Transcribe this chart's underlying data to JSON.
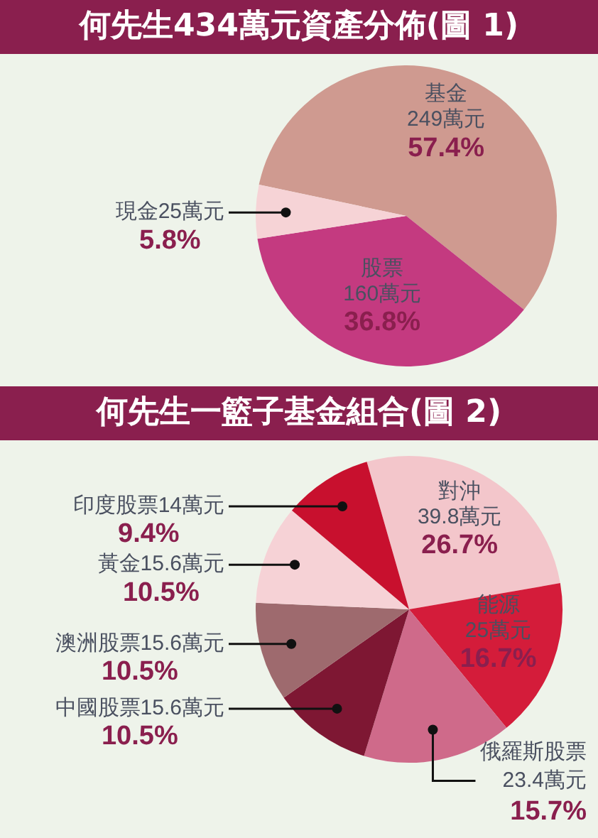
{
  "chart_data": [
    {
      "type": "pie",
      "title": "何先生434萬元資產分佈(圖 1)",
      "categories": [
        "基金",
        "股票",
        "現金"
      ],
      "values": [
        249,
        160,
        25
      ],
      "value_labels": [
        "249萬元\n57.4%",
        "160萬元\n36.8%",
        "25萬元\n5.8%"
      ],
      "colors": [
        "#cf9a90",
        "#c43a80",
        "#f6d3d6"
      ],
      "legend": false
    },
    {
      "type": "pie",
      "title": "何先生一籃子基金組合(圖 2)",
      "categories": [
        "對沖",
        "能源",
        "俄羅斯股票",
        "中國股票",
        "澳洲股票",
        "黃金",
        "印度股票"
      ],
      "values": [
        39.8,
        25,
        23.4,
        15.6,
        15.6,
        15.6,
        14
      ],
      "value_labels": [
        "39.8萬元\n26.7%",
        "25萬元\n16.7%",
        "23.4萬元\n15.7%",
        "15.6萬元\n10.5%",
        "15.6萬元\n10.5%",
        "15.6萬元\n10.5%",
        "14萬元\n9.4%"
      ],
      "colors": [
        "#f3c6cb",
        "#d41c3a",
        "#cf6a8a",
        "#7e1733",
        "#9e6a6e",
        "#f6d2d6",
        "#c8102e"
      ],
      "legend": false
    }
  ]
}
